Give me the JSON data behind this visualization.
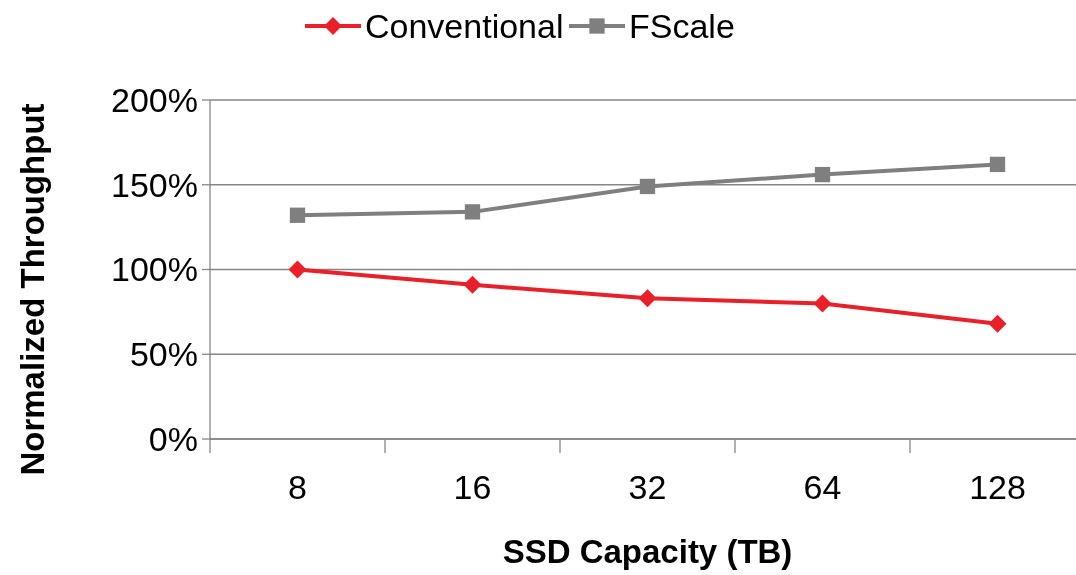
{
  "chart_data": {
    "type": "line",
    "xlabel": "SSD Capacity (TB)",
    "ylabel": "Normalized Throughput",
    "categories": [
      "8",
      "16",
      "32",
      "64",
      "128"
    ],
    "series": [
      {
        "name": "Conventional",
        "color": "#e8202a",
        "marker": "diamond",
        "values": [
          100,
          91,
          83,
          80,
          68
        ]
      },
      {
        "name": "FScale",
        "color": "#7f7f7f",
        "marker": "square",
        "values": [
          132,
          134,
          149,
          156,
          162
        ]
      }
    ],
    "ylim": [
      0,
      200
    ],
    "yticks": [
      {
        "value": 0,
        "label": "0%"
      },
      {
        "value": 50,
        "label": "50%"
      },
      {
        "value": 100,
        "label": "100%"
      },
      {
        "value": 150,
        "label": "150%"
      },
      {
        "value": 200,
        "label": "200%"
      }
    ],
    "grid": "y",
    "legend": "top",
    "line_style": "solid"
  }
}
